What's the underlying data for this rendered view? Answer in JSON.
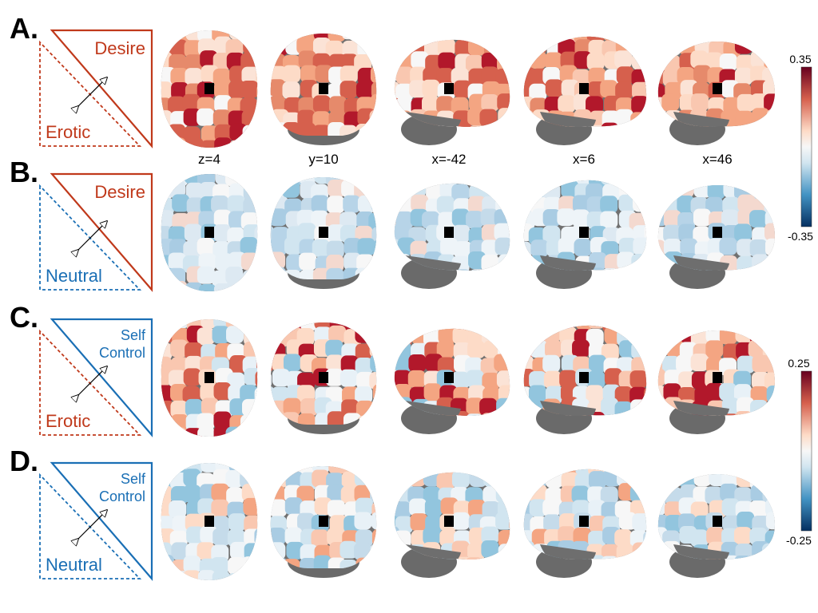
{
  "colors": {
    "red": "#c0391b",
    "blue": "#1a6fb5",
    "brain_gray": "#707070",
    "cb_pos": "#67001f",
    "cb_mid": "#f7f7f7",
    "cb_neg": "#053061"
  },
  "views": [
    "z=4",
    "y=10",
    "x=-42",
    "x=6",
    "x=46"
  ],
  "colorbars": [
    {
      "max_label": "0.35",
      "min_label": "-0.35"
    },
    {
      "max_label": "0.25",
      "min_label": "-0.25"
    }
  ],
  "rows": [
    {
      "letter": "A.",
      "top_label": [
        "Desire"
      ],
      "top_color": "red",
      "bottom_label": "Erotic",
      "bottom_color": "red",
      "tint": "pos",
      "intensity": 0.75
    },
    {
      "letter": "B.",
      "top_label": [
        "Desire"
      ],
      "top_color": "red",
      "bottom_label": "Neutral",
      "bottom_color": "blue",
      "tint": "neg",
      "intensity": 0.35
    },
    {
      "letter": "C.",
      "top_label": [
        "Self",
        "Control"
      ],
      "top_color": "blue",
      "bottom_label": "Erotic",
      "bottom_color": "red",
      "tint": "mixed-pos",
      "intensity": 0.6
    },
    {
      "letter": "D.",
      "top_label": [
        "Self",
        "Control"
      ],
      "top_color": "blue",
      "bottom_label": "Neutral",
      "bottom_color": "blue",
      "tint": "mixed",
      "intensity": 0.4
    }
  ]
}
